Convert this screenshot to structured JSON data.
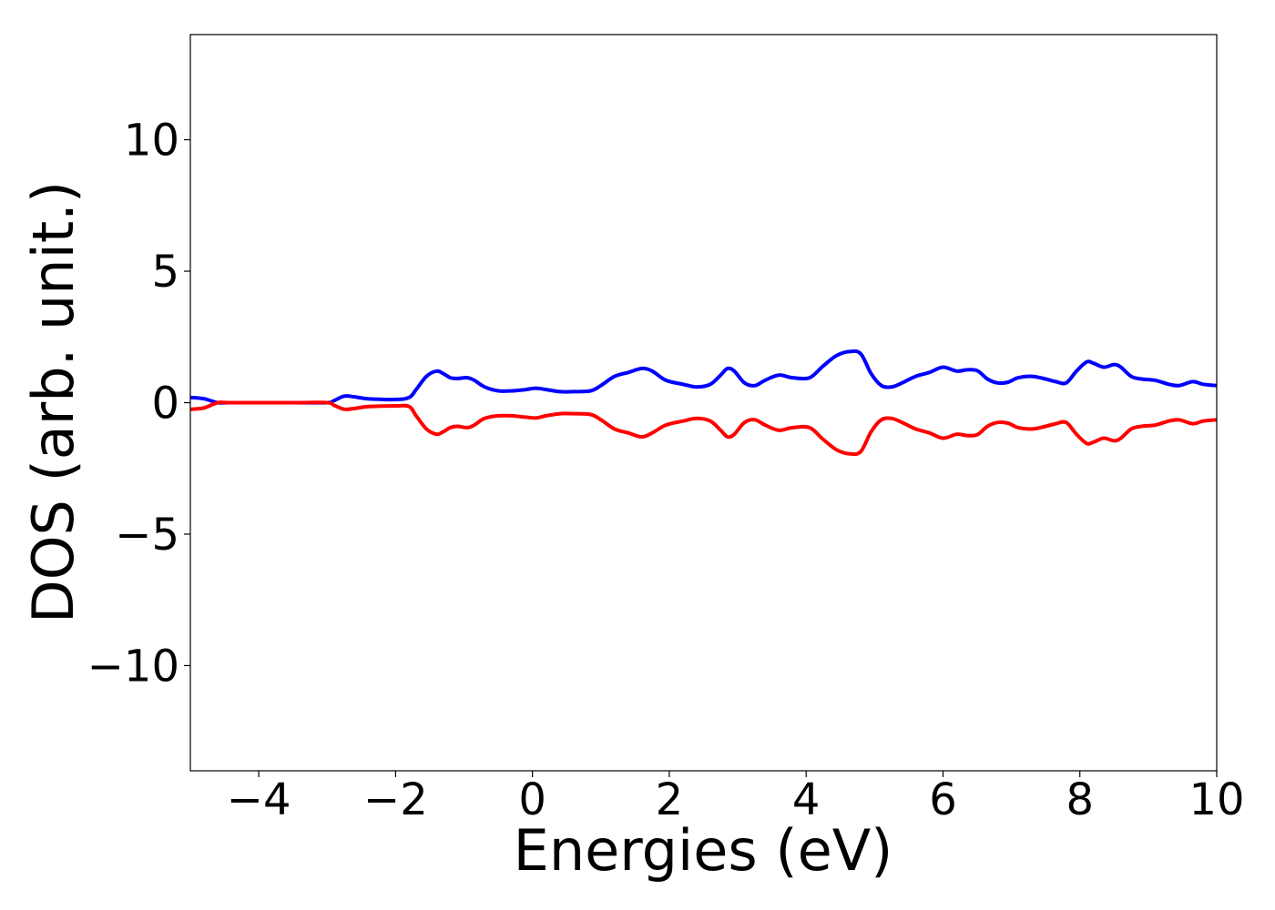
{
  "chart_data": {
    "type": "line",
    "title": "",
    "xlabel": "Energies (eV)",
    "ylabel": "DOS (arb. unit.)",
    "xlim": [
      -5,
      10
    ],
    "ylim": [
      -14,
      14
    ],
    "grid": false,
    "x_ticks": [
      -4,
      -2,
      0,
      2,
      4,
      6,
      8,
      10
    ],
    "x_tick_labels": [
      "−4",
      "−2",
      "0",
      "2",
      "4",
      "6",
      "8",
      "10"
    ],
    "y_ticks": [
      -10,
      -5,
      0,
      5,
      10
    ],
    "y_tick_labels": [
      "−10",
      "−5",
      "0",
      "5",
      "10"
    ],
    "series": [
      {
        "color": "#0000ff",
        "x": [
          -5.0,
          -4.8,
          -4.6,
          -4.4,
          -3.5,
          -3.0,
          -2.9,
          -2.75,
          -2.6,
          -2.4,
          -2.0,
          -1.8,
          -1.7,
          -1.55,
          -1.4,
          -1.3,
          -1.2,
          -1.1,
          -0.95,
          -0.85,
          -0.7,
          -0.5,
          -0.3,
          -0.1,
          0.05,
          0.2,
          0.4,
          0.6,
          0.85,
          1.0,
          1.2,
          1.4,
          1.6,
          1.75,
          1.95,
          2.2,
          2.4,
          2.6,
          2.75,
          2.85,
          2.95,
          3.1,
          3.25,
          3.4,
          3.6,
          3.8,
          4.05,
          4.25,
          4.45,
          4.65,
          4.8,
          4.95,
          5.1,
          5.25,
          5.4,
          5.6,
          5.8,
          6.0,
          6.2,
          6.35,
          6.5,
          6.65,
          6.8,
          6.95,
          7.1,
          7.3,
          7.5,
          7.65,
          7.8,
          7.95,
          8.1,
          8.2,
          8.35,
          8.5,
          8.6,
          8.75,
          8.9,
          9.1,
          9.3,
          9.45,
          9.65,
          9.8,
          10.0
        ],
        "y": [
          0.2,
          0.15,
          0.0,
          0.0,
          0.0,
          0.0,
          0.08,
          0.25,
          0.22,
          0.15,
          0.12,
          0.2,
          0.5,
          1.0,
          1.2,
          1.1,
          0.95,
          0.92,
          0.95,
          0.85,
          0.6,
          0.45,
          0.45,
          0.5,
          0.55,
          0.5,
          0.42,
          0.42,
          0.45,
          0.65,
          1.0,
          1.15,
          1.3,
          1.2,
          0.85,
          0.7,
          0.6,
          0.7,
          1.05,
          1.3,
          1.2,
          0.75,
          0.65,
          0.85,
          1.05,
          0.95,
          0.95,
          1.4,
          1.8,
          1.95,
          1.85,
          1.1,
          0.65,
          0.6,
          0.75,
          1.0,
          1.15,
          1.35,
          1.2,
          1.25,
          1.22,
          0.9,
          0.75,
          0.78,
          0.95,
          1.0,
          0.9,
          0.8,
          0.75,
          1.2,
          1.55,
          1.5,
          1.35,
          1.45,
          1.35,
          1.0,
          0.9,
          0.85,
          0.7,
          0.65,
          0.8,
          0.7,
          0.65
        ]
      },
      {
        "color": "#ff0000",
        "x": [
          -5.0,
          -4.8,
          -4.6,
          -4.4,
          -3.5,
          -3.0,
          -2.9,
          -2.75,
          -2.6,
          -2.4,
          -2.0,
          -1.8,
          -1.7,
          -1.55,
          -1.4,
          -1.3,
          -1.2,
          -1.1,
          -0.95,
          -0.85,
          -0.7,
          -0.5,
          -0.3,
          -0.1,
          0.05,
          0.2,
          0.4,
          0.6,
          0.85,
          1.0,
          1.2,
          1.4,
          1.6,
          1.75,
          1.95,
          2.2,
          2.4,
          2.6,
          2.75,
          2.85,
          2.95,
          3.1,
          3.25,
          3.4,
          3.6,
          3.8,
          4.05,
          4.25,
          4.45,
          4.65,
          4.8,
          4.95,
          5.1,
          5.25,
          5.4,
          5.6,
          5.8,
          6.0,
          6.2,
          6.35,
          6.5,
          6.65,
          6.8,
          6.95,
          7.1,
          7.3,
          7.5,
          7.65,
          7.8,
          7.95,
          8.1,
          8.2,
          8.35,
          8.5,
          8.6,
          8.75,
          8.9,
          9.1,
          9.3,
          9.45,
          9.65,
          9.8,
          10.0
        ],
        "y": [
          -0.25,
          -0.2,
          0.0,
          0.0,
          0.0,
          0.0,
          -0.1,
          -0.25,
          -0.22,
          -0.15,
          -0.12,
          -0.15,
          -0.5,
          -1.0,
          -1.2,
          -1.1,
          -0.95,
          -0.9,
          -0.95,
          -0.85,
          -0.6,
          -0.5,
          -0.5,
          -0.55,
          -0.58,
          -0.5,
          -0.42,
          -0.42,
          -0.45,
          -0.65,
          -1.0,
          -1.15,
          -1.3,
          -1.15,
          -0.85,
          -0.7,
          -0.6,
          -0.7,
          -1.05,
          -1.3,
          -1.2,
          -0.75,
          -0.65,
          -0.85,
          -1.05,
          -0.95,
          -0.95,
          -1.4,
          -1.8,
          -1.95,
          -1.85,
          -1.1,
          -0.65,
          -0.6,
          -0.75,
          -1.0,
          -1.15,
          -1.35,
          -1.2,
          -1.25,
          -1.22,
          -0.9,
          -0.75,
          -0.78,
          -0.95,
          -1.0,
          -0.9,
          -0.8,
          -0.75,
          -1.2,
          -1.55,
          -1.5,
          -1.35,
          -1.45,
          -1.35,
          -1.0,
          -0.9,
          -0.85,
          -0.7,
          -0.65,
          -0.8,
          -0.7,
          -0.65
        ]
      }
    ]
  }
}
